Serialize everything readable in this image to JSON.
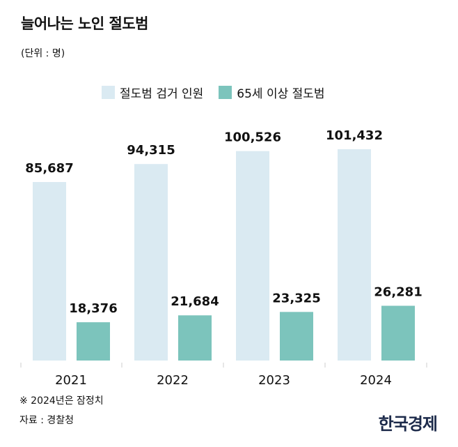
{
  "chart_data": {
    "type": "bar",
    "title": "늘어나는 노인 절도범",
    "subtitle": "(단위 : 명)",
    "categories": [
      "2021",
      "2022",
      "2023",
      "2024"
    ],
    "series": [
      {
        "name": "절도범 검거 인원",
        "color": "#daeaf2",
        "values": [
          85687,
          94315,
          100526,
          101432
        ],
        "labels": [
          "85,687",
          "94,315",
          "100,526",
          "101,432"
        ]
      },
      {
        "name": "65세 이상 절도범",
        "color": "#7cc4bc",
        "values": [
          18376,
          21684,
          23325,
          26281
        ],
        "labels": [
          "18,376",
          "21,684",
          "23,325",
          "26,281"
        ]
      }
    ],
    "legend": "top",
    "grid": false
  },
  "footnote": "※ 2024년은 잠정치",
  "source": "자료 : 경찰청",
  "brand": "한국경제"
}
